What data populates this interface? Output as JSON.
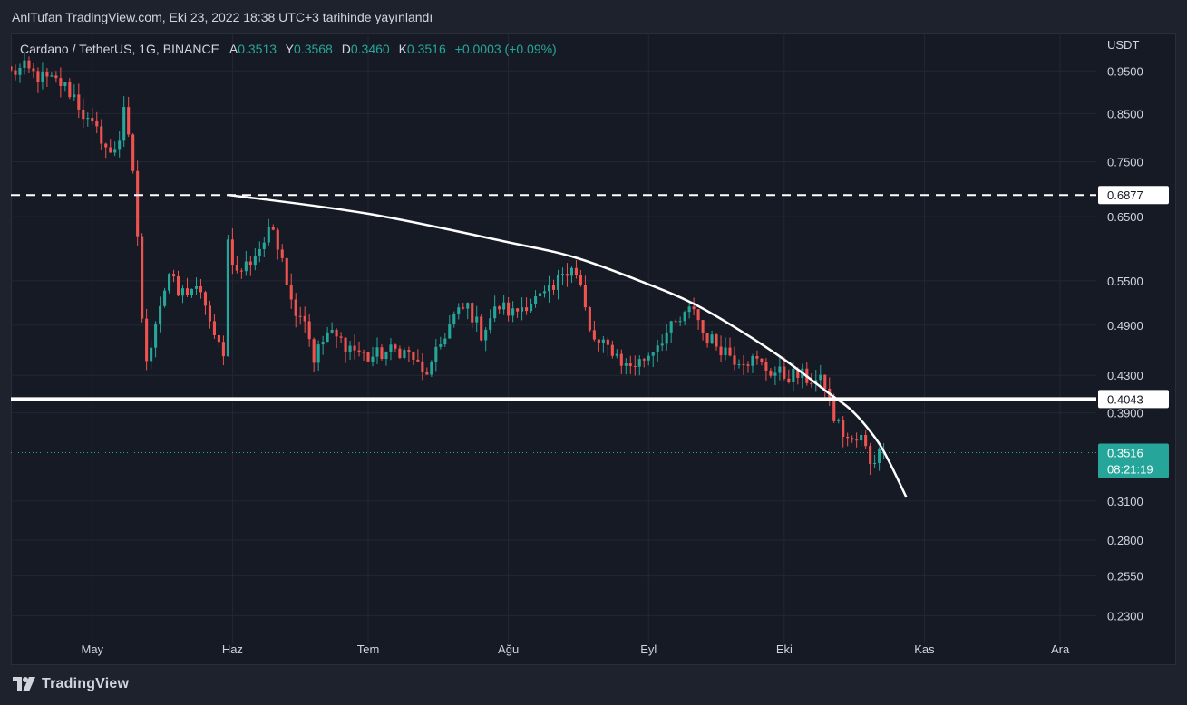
{
  "header": {
    "published": "AnlTufan TradingView.com, Eki 23, 2022 18:38 UTC+3 tarihinde yayınlandı"
  },
  "legend": {
    "symbol": "Cardano / TetherUS, 1G, BINANCE",
    "open_label": "A",
    "open": "0.3513",
    "high_label": "Y",
    "high": "0.3568",
    "low_label": "D",
    "low": "0.3460",
    "close_label": "K",
    "close": "0.3516",
    "change": "+0.0003 (+0.09%)"
  },
  "footer": {
    "brand": "TradingView"
  },
  "colors": {
    "up": "#26a69a",
    "down": "#ef5350",
    "background": "#161a25",
    "grid": "#232734",
    "line": "#ffffff"
  },
  "chart_data": {
    "type": "candlestick",
    "scale": "log",
    "currency_label": "USDT",
    "y_ticks": [
      0.95,
      0.85,
      0.75,
      0.65,
      0.55,
      0.49,
      0.43,
      0.39,
      0.31,
      0.28,
      0.255,
      0.23
    ],
    "y_tick_labels": [
      "0.9500",
      "0.8500",
      "0.7500",
      "0.6500",
      "0.5500",
      "0.4900",
      "0.4300",
      "0.3900",
      "0.3100",
      "0.2800",
      "0.2550",
      "0.2300"
    ],
    "x_ticks": [
      {
        "label": "May",
        "date": "2022-05-01"
      },
      {
        "label": "Haz",
        "date": "2022-06-01"
      },
      {
        "label": "Tem",
        "date": "2022-07-01"
      },
      {
        "label": "Ağu",
        "date": "2022-08-01"
      },
      {
        "label": "Eyl",
        "date": "2022-09-01"
      },
      {
        "label": "Eki",
        "date": "2022-10-01"
      },
      {
        "label": "Kas",
        "date": "2022-11-01"
      },
      {
        "label": "Ara",
        "date": "2022-12-01"
      }
    ],
    "ylim": [
      0.215,
      1.03
    ],
    "xlim": [
      "2022-04-13",
      "2022-12-09"
    ],
    "current_price": {
      "value": 0.3516,
      "label": "0.3516",
      "countdown": "08:21:19"
    },
    "horizontal_levels": [
      {
        "value": 0.6877,
        "label": "0.6877",
        "style": "dashed"
      },
      {
        "value": 0.4043,
        "label": "0.4043",
        "style": "solid"
      }
    ],
    "arc": [
      {
        "date": "2022-05-31",
        "value": 0.688
      },
      {
        "date": "2022-07-01",
        "value": 0.655
      },
      {
        "date": "2022-08-01",
        "value": 0.608
      },
      {
        "date": "2022-08-16",
        "value": 0.584
      },
      {
        "date": "2022-09-01",
        "value": 0.545
      },
      {
        "date": "2022-09-11",
        "value": 0.518
      },
      {
        "date": "2022-09-21",
        "value": 0.484
      },
      {
        "date": "2022-10-01",
        "value": 0.448
      },
      {
        "date": "2022-10-11",
        "value": 0.41
      },
      {
        "date": "2022-10-16",
        "value": 0.392
      },
      {
        "date": "2022-10-21",
        "value": 0.366
      },
      {
        "date": "2022-10-24",
        "value": 0.345
      },
      {
        "date": "2022-10-28",
        "value": 0.313
      }
    ],
    "close_path": [
      [
        "2022-04-13",
        0.945
      ],
      [
        "2022-04-16",
        0.955
      ],
      [
        "2022-04-20",
        0.93
      ],
      [
        "2022-04-24",
        0.92
      ],
      [
        "2022-04-27",
        0.89
      ],
      [
        "2022-04-30",
        0.83
      ],
      [
        "2022-05-03",
        0.8
      ],
      [
        "2022-05-05",
        0.76
      ],
      [
        "2022-05-06",
        0.78
      ],
      [
        "2022-05-07",
        0.8
      ],
      [
        "2022-05-08",
        0.87
      ],
      [
        "2022-05-09",
        0.79
      ],
      [
        "2022-05-10",
        0.72
      ],
      [
        "2022-05-11",
        0.62
      ],
      [
        "2022-05-12",
        0.5
      ],
      [
        "2022-05-13",
        0.44
      ],
      [
        "2022-05-15",
        0.5
      ],
      [
        "2022-05-18",
        0.56
      ],
      [
        "2022-05-20",
        0.53
      ],
      [
        "2022-05-23",
        0.54
      ],
      [
        "2022-05-26",
        0.52
      ],
      [
        "2022-05-28",
        0.47
      ],
      [
        "2022-05-30",
        0.46
      ],
      [
        "2022-05-31",
        0.61
      ],
      [
        "2022-06-02",
        0.56
      ],
      [
        "2022-06-05",
        0.58
      ],
      [
        "2022-06-07",
        0.6
      ],
      [
        "2022-06-10",
        0.63
      ],
      [
        "2022-06-12",
        0.59
      ],
      [
        "2022-06-14",
        0.52
      ],
      [
        "2022-06-17",
        0.5
      ],
      [
        "2022-06-19",
        0.45
      ],
      [
        "2022-06-22",
        0.48
      ],
      [
        "2022-06-25",
        0.47
      ],
      [
        "2022-06-28",
        0.46
      ],
      [
        "2022-07-01",
        0.45
      ],
      [
        "2022-07-04",
        0.455
      ],
      [
        "2022-07-08",
        0.46
      ],
      [
        "2022-07-11",
        0.45
      ],
      [
        "2022-07-13",
        0.43
      ],
      [
        "2022-07-15",
        0.44
      ],
      [
        "2022-07-18",
        0.48
      ],
      [
        "2022-07-20",
        0.5
      ],
      [
        "2022-07-23",
        0.515
      ],
      [
        "2022-07-26",
        0.48
      ],
      [
        "2022-07-28",
        0.5
      ],
      [
        "2022-07-30",
        0.515
      ],
      [
        "2022-08-02",
        0.505
      ],
      [
        "2022-08-05",
        0.52
      ],
      [
        "2022-08-08",
        0.525
      ],
      [
        "2022-08-11",
        0.535
      ],
      [
        "2022-08-13",
        0.565
      ],
      [
        "2022-08-15",
        0.575
      ],
      [
        "2022-08-17",
        0.54
      ],
      [
        "2022-08-19",
        0.48
      ],
      [
        "2022-08-21",
        0.465
      ],
      [
        "2022-08-24",
        0.46
      ],
      [
        "2022-08-27",
        0.44
      ],
      [
        "2022-08-30",
        0.445
      ],
      [
        "2022-09-01",
        0.455
      ],
      [
        "2022-09-04",
        0.475
      ],
      [
        "2022-09-07",
        0.49
      ],
      [
        "2022-09-09",
        0.5
      ],
      [
        "2022-09-11",
        0.515
      ],
      [
        "2022-09-13",
        0.48
      ],
      [
        "2022-09-15",
        0.47
      ],
      [
        "2022-09-18",
        0.46
      ],
      [
        "2022-09-20",
        0.45
      ],
      [
        "2022-09-22",
        0.45
      ],
      [
        "2022-09-25",
        0.445
      ],
      [
        "2022-09-28",
        0.435
      ],
      [
        "2022-10-01",
        0.43
      ],
      [
        "2022-10-04",
        0.43
      ],
      [
        "2022-10-07",
        0.425
      ],
      [
        "2022-10-10",
        0.42
      ],
      [
        "2022-10-12",
        0.385
      ],
      [
        "2022-10-14",
        0.37
      ],
      [
        "2022-10-16",
        0.36
      ],
      [
        "2022-10-18",
        0.365
      ],
      [
        "2022-10-20",
        0.345
      ],
      [
        "2022-10-21",
        0.348
      ],
      [
        "2022-10-22",
        0.3513
      ],
      [
        "2022-10-23",
        0.3516
      ]
    ]
  }
}
